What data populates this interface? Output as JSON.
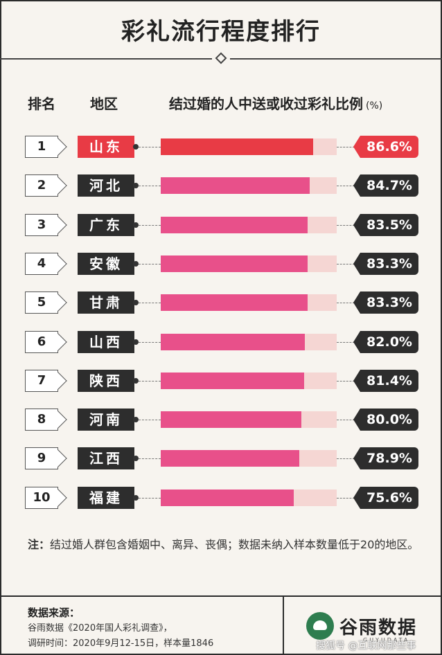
{
  "title": "彩礼流行程度排行",
  "headers": {
    "rank": "排名",
    "region": "地区",
    "ratio": "结过婚的人中送或收过彩礼比例",
    "unit": "(%)"
  },
  "chart_data": {
    "type": "bar",
    "orientation": "horizontal",
    "categories": [
      "山东",
      "河北",
      "广东",
      "安徽",
      "甘肃",
      "山西",
      "陕西",
      "河南",
      "江西",
      "福建"
    ],
    "ranks": [
      "1",
      "2",
      "3",
      "4",
      "5",
      "6",
      "7",
      "8",
      "9",
      "10"
    ],
    "values": [
      86.6,
      84.7,
      83.5,
      83.3,
      83.3,
      82.0,
      81.4,
      80.0,
      78.9,
      75.6
    ],
    "labels": [
      "86.6%",
      "84.7%",
      "83.5%",
      "83.3%",
      "83.3%",
      "82.0%",
      "81.4%",
      "80.0%",
      "78.9%",
      "75.6%"
    ],
    "xlim": [
      0,
      100
    ],
    "highlight_index": 0,
    "colors": {
      "highlight": "#e83b45",
      "bar": "#e8508a",
      "track": "#f5d6d3",
      "tag": "#2d2d2d"
    }
  },
  "note": {
    "label": "注：",
    "text": "结过婚人群包含婚姻中、离异、丧偶；数据未纳入样本数量低于20的地区。"
  },
  "source": {
    "title": "数据来源：",
    "line1": "谷雨数据《2020年国人彩礼调查》，",
    "line2": "调研时间：2020年9月12-15日，样本量1846"
  },
  "logo": {
    "icon": "guyu-bird-icon",
    "name": "谷雨数据",
    "sub": "GUYUDATA"
  },
  "watermark": "搜狐号 @互联网那些事"
}
